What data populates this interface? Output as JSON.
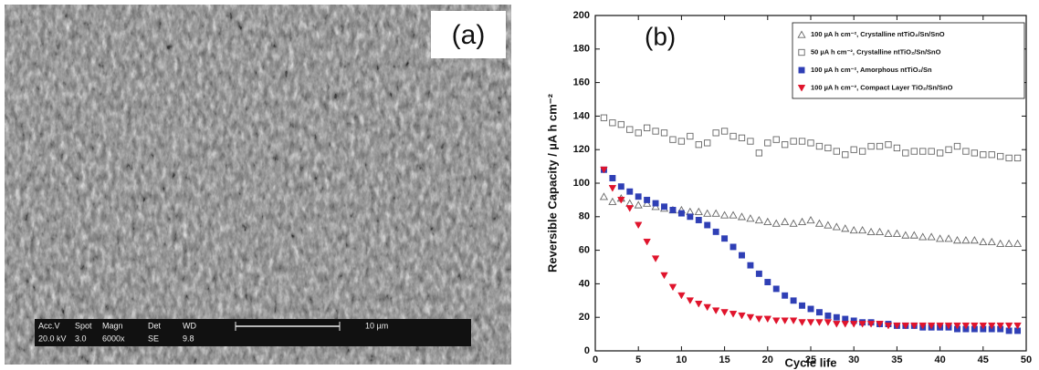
{
  "panel_a": {
    "label": "(a)",
    "info_headers": [
      "Acc.V",
      "Spot",
      "Magn",
      "Det",
      "WD"
    ],
    "info_values": [
      "20.0 kV",
      "3.0",
      "6000x",
      "SE",
      "9.8"
    ],
    "scale_bar": "10 µm"
  },
  "chart_data": {
    "type": "scatter",
    "annotation": "(b)",
    "x_label": "Cycle life",
    "y_label": "Reversible Capacity / µA h cm⁻²",
    "x": [
      1,
      2,
      3,
      4,
      5,
      6,
      7,
      8,
      9,
      10,
      11,
      12,
      13,
      14,
      15,
      16,
      17,
      18,
      19,
      20,
      21,
      22,
      23,
      24,
      25,
      26,
      27,
      28,
      29,
      30,
      31,
      32,
      33,
      34,
      35,
      36,
      37,
      38,
      39,
      40,
      41,
      42,
      43,
      44,
      45,
      46,
      47,
      48,
      49
    ],
    "series": [
      {
        "name": "100 µA h cm⁻², Crystalline ntTiO₂/Sn/SnO",
        "color": "#666666",
        "marker": "triangle-open",
        "values": [
          92,
          89,
          91,
          88,
          87,
          88,
          86,
          85,
          84,
          84,
          83,
          83,
          82,
          82,
          81,
          81,
          80,
          79,
          78,
          77,
          76,
          77,
          76,
          77,
          78,
          76,
          75,
          74,
          73,
          72,
          72,
          71,
          71,
          70,
          70,
          69,
          69,
          68,
          68,
          67,
          67,
          66,
          66,
          66,
          65,
          65,
          64,
          64,
          64
        ]
      },
      {
        "name": "50 µA h cm⁻², Crystalline ntTiO₂/Sn/SnO",
        "color": "#666666",
        "marker": "square-open",
        "values": [
          139,
          136,
          135,
          132,
          130,
          133,
          131,
          130,
          126,
          125,
          128,
          123,
          124,
          130,
          131,
          128,
          127,
          125,
          118,
          124,
          126,
          123,
          125,
          125,
          124,
          122,
          121,
          119,
          117,
          120,
          119,
          122,
          122,
          123,
          121,
          118,
          119,
          119,
          119,
          118,
          120,
          122,
          119,
          118,
          117,
          117,
          116,
          115,
          115
        ]
      },
      {
        "name": "100 µA h cm⁻², Amorphous ntTiO₂/Sn",
        "color": "#2f3fb5",
        "marker": "square",
        "values": [
          108,
          103,
          98,
          95,
          92,
          90,
          88,
          86,
          84,
          82,
          80,
          78,
          75,
          71,
          67,
          62,
          57,
          51,
          46,
          41,
          37,
          33,
          30,
          27,
          25,
          23,
          21,
          20,
          19,
          18,
          17,
          17,
          16,
          16,
          15,
          15,
          15,
          14,
          14,
          14,
          14,
          13,
          13,
          13,
          13,
          13,
          13,
          12,
          12
        ]
      },
      {
        "name": "100 µA h cm⁻², Compact Layer TiO₂/Sn/SnO",
        "color": "#e0142c",
        "marker": "triangle-down",
        "values": [
          108,
          97,
          90,
          85,
          75,
          65,
          55,
          45,
          38,
          33,
          30,
          28,
          26,
          24,
          23,
          22,
          21,
          20,
          19,
          19,
          18,
          18,
          18,
          17,
          17,
          17,
          17,
          16,
          16,
          16,
          16,
          16,
          16,
          15,
          15,
          15,
          15,
          15,
          15,
          15,
          15,
          15,
          15,
          15,
          15,
          15,
          15,
          15,
          15
        ]
      }
    ],
    "xlim": [
      0,
      50
    ],
    "xticks": [
      0,
      5,
      10,
      15,
      20,
      25,
      30,
      35,
      40,
      45,
      50
    ],
    "ylim": [
      0,
      200
    ],
    "yticks": [
      0,
      20,
      40,
      60,
      80,
      100,
      120,
      140,
      160,
      180,
      200
    ]
  }
}
